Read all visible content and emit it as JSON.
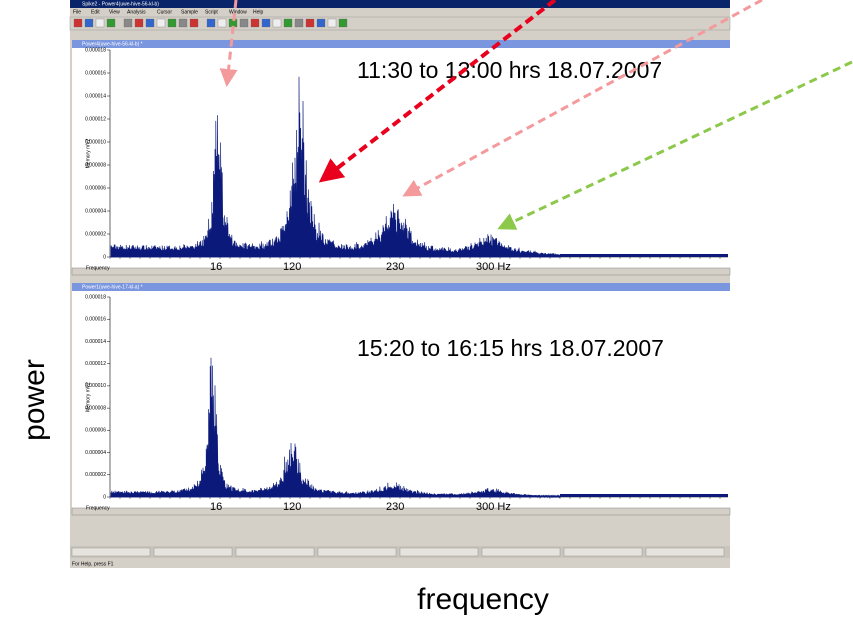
{
  "window": {
    "title": "Spike2 - Power4(uwe-hive-56-kl-b)",
    "menu": [
      "File",
      "Edit",
      "View",
      "Analysis",
      "Cursor",
      "Sample",
      "Script",
      "Window",
      "Help"
    ],
    "status": "For Help, press F1"
  },
  "panels": [
    {
      "title": "Power4(uwe-hive-56-kl-b) *",
      "axis_label": "Memory mV2",
      "yticks": [
        "0.000018",
        "0.000016",
        "0.000014",
        "0.000012",
        "0.000010",
        "0.000008",
        "0.000006",
        "0.000004",
        "0.000002",
        "0"
      ],
      "x_label": "Frequency",
      "annotation": "11:30 to 13:00 hrs 18.07.2007",
      "peak_labels": [
        "16",
        "120",
        "230",
        "300  Hz"
      ]
    },
    {
      "title": "Power1(uwe-hive-17-kl-a) *",
      "axis_label": "Memory mV2",
      "yticks": [
        "0.000018",
        "0.000016",
        "0.000014",
        "0.000012",
        "0.000010",
        "0.000008",
        "0.000006",
        "0.000004",
        "0.000002",
        "0"
      ],
      "x_label": "Frequency",
      "annotation": "15:20 to 16:15 hrs 18.07.2007",
      "peak_labels": [
        "16",
        "120",
        "230",
        "300  Hz"
      ]
    }
  ],
  "slide": {
    "y_label": "power",
    "x_label": "frequency"
  }
}
